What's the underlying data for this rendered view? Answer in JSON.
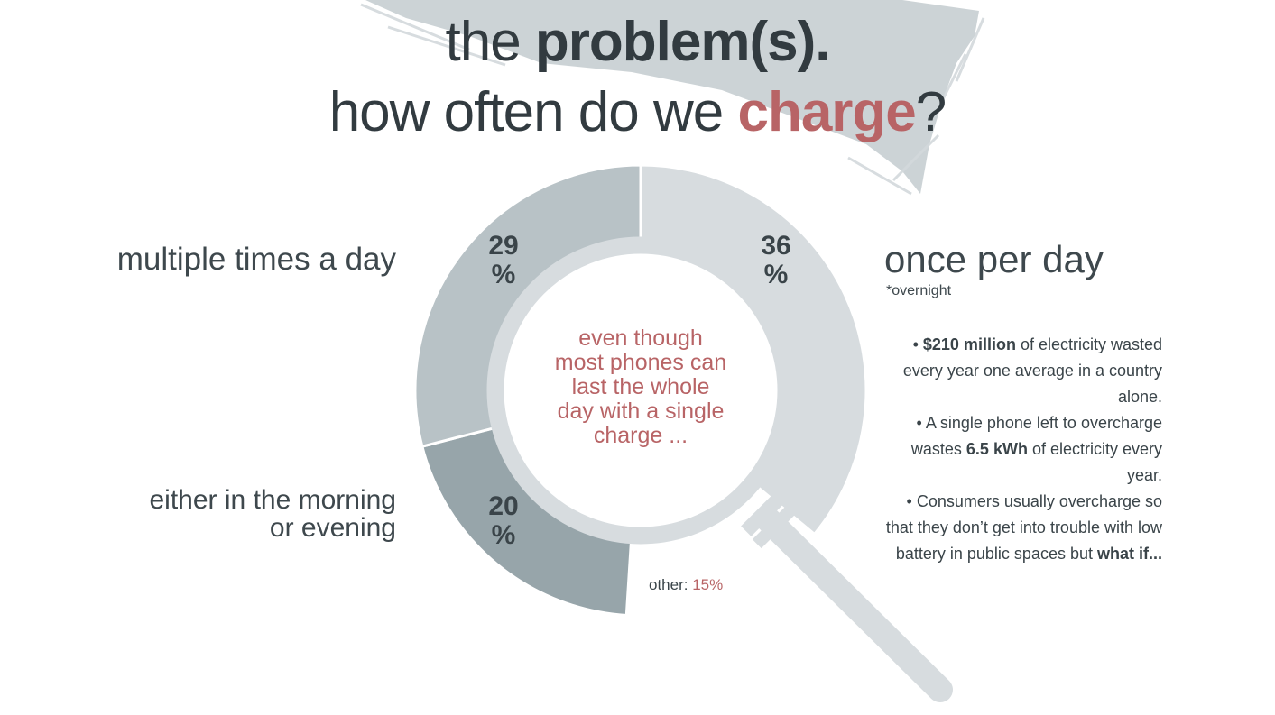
{
  "title": {
    "line1_prefix": "the ",
    "line1_bold": "problem(s)",
    "line1_suffix": ".",
    "line2_prefix": "how often do we ",
    "line2_accent": "charge",
    "line2_suffix": "?"
  },
  "colors": {
    "accent": "#b86466",
    "text_dark": "#323b40",
    "segment_once": "#d7dcdf",
    "segment_multi": "#b8c2c6",
    "segment_either": "#97a5aa",
    "magnifier": "#d7dcdf",
    "brush": "#c3cbcf"
  },
  "chart_data": {
    "type": "pie",
    "title": "",
    "slices": [
      {
        "label": "once per day",
        "value": 36,
        "display": "36 %",
        "color": "#d7dcdf"
      },
      {
        "label": "multiple times a day",
        "value": 29,
        "display": "29 %",
        "color": "#b8c2c6"
      },
      {
        "label": "either in the morning or evening",
        "value": 20,
        "display": "20 %",
        "color": "#97a5aa"
      },
      {
        "label": "other",
        "value": 15,
        "display": "15%",
        "color": "#ffffff"
      }
    ]
  },
  "labels": {
    "once": "once per day",
    "once_note": "*overnight",
    "multi": "multiple times a day",
    "either_line1": "either in the morning",
    "either_line2": "or evening",
    "other_prefix": "other: ",
    "other_value": "15%",
    "pct_once": "36",
    "pct_multi": "29",
    "pct_either": "20",
    "pct_sign": "%"
  },
  "center_text": [
    "even though",
    "most phones can",
    "last the whole",
    "day with a single",
    "charge ..."
  ],
  "bullets": [
    {
      "bullet": "• ",
      "bold": "$210 million",
      "text": " of electricity wasted every year one average in a country alone."
    },
    {
      "bullet": "• ",
      "pre": "A single phone left to overcharge wastes ",
      "bold": "6.5 kWh",
      "text": " of electricity every year."
    },
    {
      "bullet": "• ",
      "pre": "Consumers usually overcharge so that they don’t get into trouble with low battery in public spaces but ",
      "bold": "what if..."
    }
  ]
}
